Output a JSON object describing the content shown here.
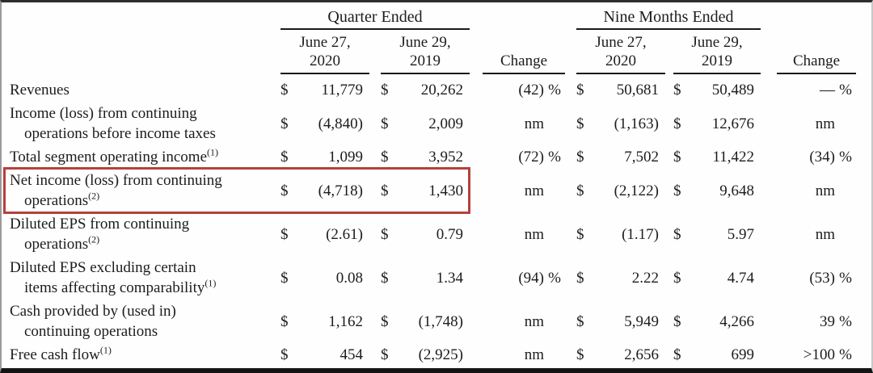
{
  "table": {
    "currency": "$",
    "highlight_border_color": "#b5413d",
    "groups": {
      "quarter": "Quarter Ended",
      "nine_months": "Nine Months Ended"
    },
    "col_headers": {
      "q2020": {
        "l1": "June 27,",
        "l2": "2020"
      },
      "q2019": {
        "l1": "June 29,",
        "l2": "2019"
      },
      "n2020": {
        "l1": "June 27,",
        "l2": "2020"
      },
      "n2019": {
        "l1": "June 29,",
        "l2": "2019"
      },
      "change_quarter": "Change",
      "change_nine": "Change"
    },
    "rows": [
      {
        "l1": "Revenues",
        "sup1": "",
        "l2": "",
        "sup2": "",
        "q20": "11,779",
        "q19": "20,262",
        "c1": {
          "v": "(42)",
          "s": "%"
        },
        "n20": "50,681",
        "n19": "50,489",
        "c2": {
          "v": "—",
          "s": "%"
        },
        "highlight": false
      },
      {
        "l1": "Income (loss) from continuing",
        "sup1": "",
        "l2": "operations before income taxes",
        "sup2": "",
        "q20": "(4,840)",
        "q19": "2,009",
        "c1": {
          "v": "nm",
          "s": ""
        },
        "n20": "(1,163)",
        "n19": "12,676",
        "c2": {
          "v": "nm",
          "s": ""
        },
        "highlight": false
      },
      {
        "l1": "Total segment operating income",
        "sup1": "(1)",
        "l2": "",
        "sup2": "",
        "q20": "1,099",
        "q19": "3,952",
        "c1": {
          "v": "(72)",
          "s": "%"
        },
        "n20": "7,502",
        "n19": "11,422",
        "c2": {
          "v": "(34)",
          "s": "%"
        },
        "highlight": false
      },
      {
        "l1": "Net income (loss) from continuing",
        "sup1": "",
        "l2": "operations",
        "sup2": "(2)",
        "q20": "(4,718)",
        "q19": "1,430",
        "c1": {
          "v": "nm",
          "s": ""
        },
        "n20": "(2,122)",
        "n19": "9,648",
        "c2": {
          "v": "nm",
          "s": ""
        },
        "highlight": true
      },
      {
        "l1": "Diluted EPS from continuing",
        "sup1": "",
        "l2": "operations",
        "sup2": "(2)",
        "q20": "(2.61)",
        "q19": "0.79",
        "c1": {
          "v": "nm",
          "s": ""
        },
        "n20": "(1.17)",
        "n19": "5.97",
        "c2": {
          "v": "nm",
          "s": ""
        },
        "highlight": false
      },
      {
        "l1": "Diluted EPS excluding certain",
        "sup1": "",
        "l2": "items affecting comparability",
        "sup2": "(1)",
        "q20": "0.08",
        "q19": "1.34",
        "c1": {
          "v": "(94)",
          "s": "%"
        },
        "n20": "2.22",
        "n19": "4.74",
        "c2": {
          "v": "(53)",
          "s": "%"
        },
        "highlight": false
      },
      {
        "l1": "Cash provided by (used in)",
        "sup1": "",
        "l2": "continuing operations",
        "sup2": "",
        "q20": "1,162",
        "q19": "(1,748)",
        "c1": {
          "v": "nm",
          "s": ""
        },
        "n20": "5,949",
        "n19": "4,266",
        "c2": {
          "v": "39",
          "s": "%"
        },
        "highlight": false
      },
      {
        "l1": "Free cash flow",
        "sup1": "(1)",
        "l2": "",
        "sup2": "",
        "q20": "454",
        "q19": "(2,925)",
        "c1": {
          "v": "nm",
          "s": ""
        },
        "n20": "2,656",
        "n19": "699",
        "c2": {
          "v": ">100",
          "s": "%"
        },
        "highlight": false
      }
    ]
  }
}
